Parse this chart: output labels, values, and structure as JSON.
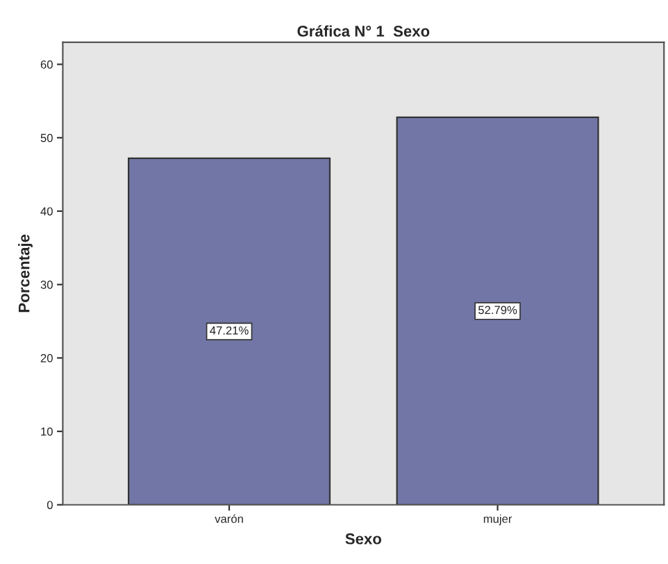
{
  "chart_data": {
    "type": "bar",
    "title": "Gráfica N° 1  Sexo",
    "xlabel": "Sexo",
    "ylabel": "Porcentaje",
    "categories": [
      "varón",
      "mujer"
    ],
    "values": [
      47.21,
      52.79
    ],
    "value_labels": [
      "47.21%",
      "52.79%"
    ],
    "color": "#7276a6",
    "ylim": [
      0,
      63
    ],
    "yticks": [
      0,
      10,
      20,
      30,
      40,
      50,
      60
    ],
    "grid": false,
    "legend": false
  }
}
